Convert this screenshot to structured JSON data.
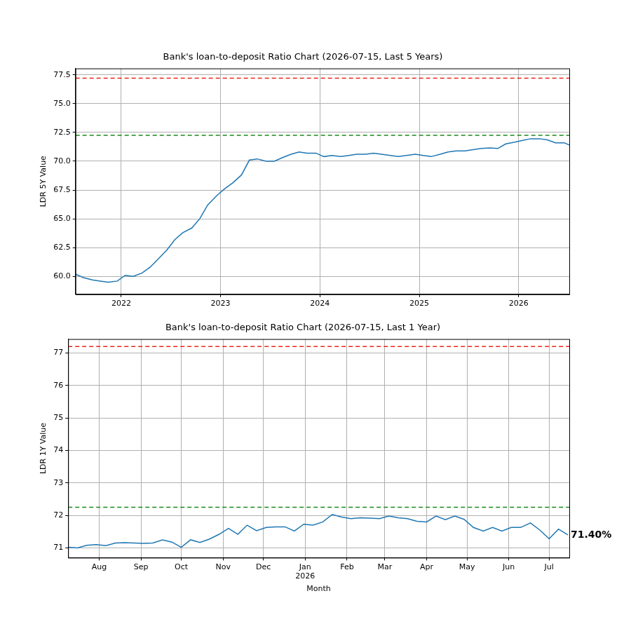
{
  "chart_data": [
    {
      "type": "line",
      "title": "Bank's loan-to-deposit Ratio Chart (2026-07-15, Last 5 Years)",
      "y_label": "LDR 5Y Value",
      "color": "#1f77b4",
      "grid": true,
      "xlim": [
        2021.54,
        2026.51
      ],
      "ylim": [
        58.45,
        78.05
      ],
      "xticks": [
        2022,
        2023,
        2024,
        2025,
        2026
      ],
      "yticks": [
        {
          "value": 60,
          "label": "60.0"
        },
        62.5,
        {
          "value": 65,
          "label": "65.0"
        },
        67.5,
        {
          "value": 70,
          "label": "70.0"
        },
        72.5,
        {
          "value": 75,
          "label": "75.0"
        },
        77.5
      ],
      "reference_lines": [
        {
          "y": 77.2,
          "color": "#e8261c",
          "line_style": "dashed"
        },
        {
          "y": 72.25,
          "color": "#1a8a1a",
          "line_style": "dashed"
        }
      ],
      "x": [
        2021.54,
        2021.62,
        2021.71,
        2021.79,
        2021.87,
        2021.96,
        2022.04,
        2022.12,
        2022.21,
        2022.29,
        2022.37,
        2022.46,
        2022.54,
        2022.62,
        2022.71,
        2022.79,
        2022.87,
        2022.96,
        2023.04,
        2023.12,
        2023.21,
        2023.29,
        2023.37,
        2023.46,
        2023.54,
        2023.62,
        2023.71,
        2023.79,
        2023.87,
        2023.96,
        2024.04,
        2024.12,
        2024.21,
        2024.29,
        2024.37,
        2024.46,
        2024.54,
        2024.62,
        2024.71,
        2024.79,
        2024.87,
        2024.96,
        2025.04,
        2025.12,
        2025.21,
        2025.29,
        2025.37,
        2025.46,
        2025.54,
        2025.62,
        2025.71,
        2025.79,
        2025.87,
        2025.96,
        2026.04,
        2026.12,
        2026.21,
        2026.29,
        2026.37,
        2026.46,
        2026.51
      ],
      "values": [
        60.2,
        59.9,
        59.7,
        59.6,
        59.5,
        59.6,
        60.1,
        60.0,
        60.3,
        60.8,
        61.5,
        62.3,
        63.2,
        63.8,
        64.2,
        65.0,
        66.2,
        67.0,
        67.6,
        68.1,
        68.8,
        70.1,
        70.2,
        70.0,
        70.0,
        70.3,
        70.6,
        70.8,
        70.7,
        70.7,
        70.4,
        70.5,
        70.4,
        70.5,
        70.6,
        70.6,
        70.7,
        70.6,
        70.5,
        70.4,
        70.5,
        70.6,
        70.5,
        70.4,
        70.6,
        70.8,
        70.9,
        70.9,
        71.0,
        71.1,
        71.15,
        71.1,
        71.5,
        71.65,
        71.8,
        71.95,
        71.95,
        71.85,
        71.6,
        71.6,
        71.4
      ]
    },
    {
      "type": "line",
      "title": "Bank's loan-to-deposit Ratio Chart (2026-07-15, Last 1 Year)",
      "y_label": "LDR 1Y Value",
      "x_label": "Month",
      "color": "#1f77b4",
      "grid": true,
      "xlim": [
        2025.518,
        2026.537
      ],
      "ylim": [
        70.7,
        77.43
      ],
      "xticks": [
        {
          "value": 2025.581,
          "label": "Aug"
        },
        {
          "value": 2025.666,
          "label": "Sep"
        },
        {
          "value": 2025.748,
          "label": "Oct"
        },
        {
          "value": 2025.833,
          "label": "Nov"
        },
        {
          "value": 2025.915,
          "label": "Dec"
        },
        {
          "value": 2026.0,
          "label": "Jan\n2026"
        },
        {
          "value": 2026.085,
          "label": "Feb"
        },
        {
          "value": 2026.162,
          "label": "Mar"
        },
        {
          "value": 2026.247,
          "label": "Apr"
        },
        {
          "value": 2026.329,
          "label": "May"
        },
        {
          "value": 2026.414,
          "label": "Jun"
        },
        {
          "value": 2026.496,
          "label": "Jul"
        }
      ],
      "yticks": [
        71,
        72,
        73,
        74,
        75,
        76,
        77
      ],
      "reference_lines": [
        {
          "y": 77.2,
          "color": "#e8261c",
          "line_style": "dashed"
        },
        {
          "y": 72.25,
          "color": "#1a8a1a",
          "line_style": "dashed"
        }
      ],
      "annotations": [
        {
          "text": "71.40%",
          "x": 2026.534,
          "y": 71.4
        }
      ],
      "x": [
        2025.518,
        2025.537,
        2025.556,
        2025.575,
        2025.595,
        2025.614,
        2025.633,
        2025.652,
        2025.671,
        2025.69,
        2025.71,
        2025.729,
        2025.748,
        2025.767,
        2025.786,
        2025.805,
        2025.825,
        2025.844,
        2025.863,
        2025.882,
        2025.901,
        2025.921,
        2025.94,
        2025.959,
        2025.978,
        2025.997,
        2026.016,
        2026.036,
        2026.055,
        2026.074,
        2026.093,
        2026.112,
        2026.132,
        2026.151,
        2026.17,
        2026.189,
        2026.208,
        2026.227,
        2026.247,
        2026.266,
        2026.285,
        2026.304,
        2026.323,
        2026.342,
        2026.362,
        2026.381,
        2026.4,
        2026.419,
        2026.438,
        2026.458,
        2026.477,
        2026.496,
        2026.515,
        2026.534
      ],
      "values": [
        71.02,
        71.0,
        71.08,
        71.1,
        71.07,
        71.15,
        71.16,
        71.15,
        71.14,
        71.15,
        71.25,
        71.18,
        71.02,
        71.25,
        71.17,
        71.27,
        71.42,
        71.6,
        71.42,
        71.7,
        71.53,
        71.63,
        71.65,
        71.65,
        71.52,
        71.73,
        71.7,
        71.8,
        72.03,
        71.95,
        71.9,
        71.93,
        71.92,
        71.9,
        71.98,
        71.93,
        71.9,
        71.82,
        71.8,
        71.98,
        71.87,
        71.98,
        71.88,
        71.63,
        71.52,
        71.63,
        71.52,
        71.63,
        71.63,
        71.77,
        71.55,
        71.28,
        71.58,
        71.4
      ]
    }
  ]
}
